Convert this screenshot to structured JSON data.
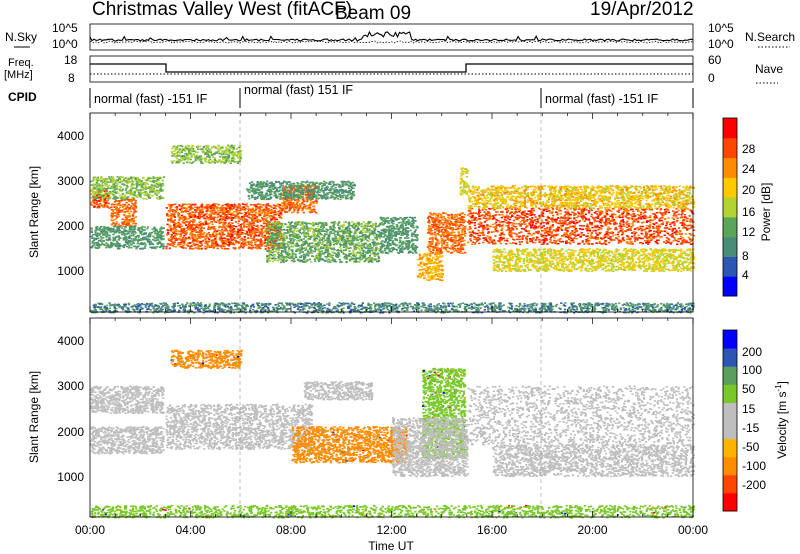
{
  "header": {
    "station": "Christmas Valley West (fitACF)",
    "beam": "Beam 09",
    "date": "19/Apr/2012"
  },
  "noise_panel": {
    "left_label": "N.Sky",
    "right_label": "N.Search",
    "left_ticks": [
      "10^5",
      "10^0"
    ],
    "right_ticks": [
      "10^5",
      "10^0"
    ]
  },
  "freq_panel": {
    "left_label_1": "Freq.",
    "left_label_2": "[MHz]",
    "right_label": "Nave",
    "left_ticks": [
      "18",
      "8"
    ],
    "right_ticks": [
      "60",
      "0"
    ]
  },
  "cpid": {
    "label": "CPID",
    "segments": [
      {
        "text": "normal (fast) -151 IF",
        "start_h": 0,
        "end_h": 6
      },
      {
        "text": "normal (fast) 151 IF",
        "start_h": 6,
        "end_h": 18
      },
      {
        "text": "normal (fast) -151 IF",
        "start_h": 18,
        "end_h": 24
      }
    ]
  },
  "time_axis": {
    "label": "Time UT",
    "ticks": [
      "00:00",
      "04:00",
      "08:00",
      "12:00",
      "16:00",
      "20:00",
      "00:00"
    ]
  },
  "range_axis": {
    "label": "Slant Range [km]",
    "ticks": [
      "1000",
      "2000",
      "3000",
      "4000"
    ]
  },
  "colors": {
    "power_scale": [
      "#0000ff",
      "#2d55b4",
      "#4a8c78",
      "#5aa55a",
      "#b4d232",
      "#ffc800",
      "#ff8c00",
      "#ff4600",
      "#ff0000"
    ],
    "velocity_scale": [
      "#ff0000",
      "#ff4600",
      "#ff8c00",
      "#ffb400",
      "#bebebe",
      "#bebebe",
      "#78c828",
      "#5aa05a",
      "#2d55b4",
      "#0000ff"
    ],
    "ground_scatter": "#bebebe"
  },
  "power_colorbar": {
    "label": "Power [dB]",
    "ticks": [
      "4",
      "8",
      "12",
      "16",
      "20",
      "24",
      "28"
    ]
  },
  "velocity_colorbar": {
    "label": "Velocity [m s",
    "label_sup": "-1",
    "label_end": "]",
    "ticks": [
      "200",
      "100",
      "50",
      "15",
      "-15",
      "-50",
      "-100",
      "-200"
    ]
  },
  "chart_data": [
    {
      "type": "heatmap",
      "title": "Power",
      "xlabel": "Time UT",
      "ylabel": "Slant Range [km]",
      "xlim": [
        0,
        24
      ],
      "ylim": [
        180,
        4600
      ],
      "colorbar": {
        "label": "Power [dB]",
        "range": [
          0,
          32
        ]
      },
      "features": [
        {
          "t": [
            0.0,
            0.8
          ],
          "r": [
            2500,
            2900
          ],
          "power_db": 28
        },
        {
          "t": [
            0.8,
            1.8
          ],
          "r": [
            2100,
            2700
          ],
          "power_db": 26
        },
        {
          "t": [
            0.0,
            2.9
          ],
          "r": [
            1600,
            2100
          ],
          "power_db": 10
        },
        {
          "t": [
            0.0,
            2.9
          ],
          "r": [
            2700,
            3200
          ],
          "power_db": 14
        },
        {
          "t": [
            3.0,
            7.6
          ],
          "r": [
            1600,
            2600
          ],
          "power_db": 27
        },
        {
          "t": [
            7.6,
            9.0
          ],
          "r": [
            2400,
            3000
          ],
          "power_db": 26
        },
        {
          "t": [
            3.2,
            6.0
          ],
          "r": [
            3500,
            3900
          ],
          "power_db": 14
        },
        {
          "t": [
            6.2,
            10.5
          ],
          "r": [
            2700,
            3100
          ],
          "power_db": 10
        },
        {
          "t": [
            7.0,
            11.5
          ],
          "r": [
            1300,
            2200
          ],
          "power_db": 12
        },
        {
          "t": [
            11.5,
            13.0
          ],
          "r": [
            1500,
            2300
          ],
          "power_db": 10
        },
        {
          "t": [
            13.4,
            14.9
          ],
          "r": [
            1500,
            2400
          ],
          "power_db": 26
        },
        {
          "t": [
            13.0,
            14.0
          ],
          "r": [
            900,
            1500
          ],
          "power_db": 22
        },
        {
          "t": [
            14.7,
            15.0
          ],
          "r": [
            2800,
            3400
          ],
          "power_db": 18
        },
        {
          "t": [
            15.0,
            24.0
          ],
          "r": [
            1700,
            2500
          ],
          "power_db": 28
        },
        {
          "t": [
            15.0,
            24.0
          ],
          "r": [
            2500,
            3000
          ],
          "power_db": 20
        },
        {
          "t": [
            16.0,
            24.0
          ],
          "r": [
            1100,
            1600
          ],
          "power_db": 18
        },
        {
          "t": [
            0.0,
            24.0
          ],
          "r": [
            180,
            400
          ],
          "power_db": 8
        }
      ]
    },
    {
      "type": "heatmap",
      "title": "Velocity",
      "xlabel": "Time UT",
      "ylabel": "Slant Range [km]",
      "xlim": [
        0,
        24
      ],
      "ylim": [
        180,
        4600
      ],
      "colorbar": {
        "label": "Velocity [m s-1]",
        "range": [
          -200,
          200
        ]
      },
      "features": [
        {
          "t": [
            0.0,
            2.9
          ],
          "r": [
            2500,
            3100
          ],
          "velocity": 0,
          "ground_scatter": true
        },
        {
          "t": [
            0.0,
            2.9
          ],
          "r": [
            1600,
            2200
          ],
          "velocity": 0,
          "ground_scatter": true
        },
        {
          "t": [
            3.0,
            8.8
          ],
          "r": [
            1700,
            2700
          ],
          "velocity": 0,
          "ground_scatter": true
        },
        {
          "t": [
            3.2,
            6.0
          ],
          "r": [
            3500,
            3900
          ],
          "velocity": -60
        },
        {
          "t": [
            8.5,
            11.2
          ],
          "r": [
            2800,
            3200
          ],
          "velocity": 0,
          "ground_scatter": true
        },
        {
          "t": [
            8.0,
            12.6
          ],
          "r": [
            1400,
            2200
          ],
          "velocity": -70
        },
        {
          "t": [
            13.2,
            14.9
          ],
          "r": [
            1500,
            3500
          ],
          "velocity": 30
        },
        {
          "t": [
            12.0,
            15.0
          ],
          "r": [
            1100,
            2400
          ],
          "velocity": 0,
          "ground_scatter": true
        },
        {
          "t": [
            15.0,
            24.0
          ],
          "r": [
            1800,
            3100
          ],
          "velocity": 0,
          "ground_scatter": true
        },
        {
          "t": [
            16.0,
            24.0
          ],
          "r": [
            1100,
            1800
          ],
          "velocity": 0,
          "ground_scatter": true
        },
        {
          "t": [
            0.0,
            24.0
          ],
          "r": [
            180,
            450
          ],
          "velocity": 30
        }
      ]
    }
  ]
}
